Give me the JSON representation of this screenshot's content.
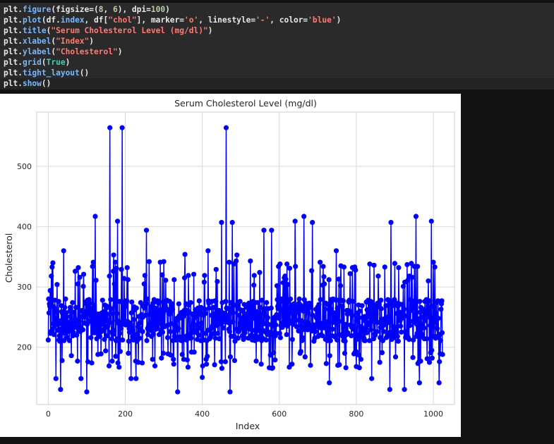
{
  "code": {
    "lines": [
      [
        [
          "plt.",
          "n"
        ],
        [
          "figure",
          "fn"
        ],
        [
          "(figsize=(",
          "n"
        ],
        [
          "8",
          "num"
        ],
        [
          ", ",
          "n"
        ],
        [
          "6",
          "num"
        ],
        [
          "), dpi=",
          "n"
        ],
        [
          "100",
          "num"
        ],
        [
          ")",
          "n"
        ]
      ],
      [
        [
          "plt.",
          "n"
        ],
        [
          "plot",
          "fn"
        ],
        [
          "(df.",
          "n"
        ],
        [
          "index",
          "fn"
        ],
        [
          ", df[",
          "n"
        ],
        [
          "\"chol\"",
          "str"
        ],
        [
          "], marker=",
          "n"
        ],
        [
          "'o'",
          "str"
        ],
        [
          ", linestyle=",
          "n"
        ],
        [
          "'-'",
          "str"
        ],
        [
          ", color=",
          "n"
        ],
        [
          "'blue'",
          "str"
        ],
        [
          ")",
          "n"
        ]
      ],
      [
        [
          "plt.",
          "n"
        ],
        [
          "title",
          "fn"
        ],
        [
          "(",
          "n"
        ],
        [
          "\"Serum Cholesterol Level (mg/dl)\"",
          "str"
        ],
        [
          ")",
          "n"
        ]
      ],
      [
        [
          "plt.",
          "n"
        ],
        [
          "xlabel",
          "fn"
        ],
        [
          "(",
          "n"
        ],
        [
          "\"Index\"",
          "str"
        ],
        [
          ")",
          "n"
        ]
      ],
      [
        [
          "plt.",
          "n"
        ],
        [
          "ylabel",
          "fn"
        ],
        [
          "(",
          "n"
        ],
        [
          "\"Cholesterol\"",
          "str"
        ],
        [
          ")",
          "n"
        ]
      ],
      [
        [
          "plt.",
          "n"
        ],
        [
          "grid",
          "fn"
        ],
        [
          "(",
          "n"
        ],
        [
          "True",
          "kw"
        ],
        [
          ")",
          "n"
        ]
      ],
      [
        [
          "plt.",
          "n"
        ],
        [
          "tight_layout",
          "fn"
        ],
        [
          "()",
          "n"
        ]
      ],
      [
        [
          "plt.",
          "n"
        ],
        [
          "show",
          "fn"
        ],
        [
          "()",
          "n"
        ]
      ]
    ]
  },
  "chart_data": {
    "type": "line",
    "title": "Serum Cholesterol Level (mg/dl)",
    "xlabel": "Index",
    "ylabel": "Cholesterol",
    "xlim": [
      -30,
      1055
    ],
    "ylim": [
      105,
      590
    ],
    "xticks": [
      0,
      200,
      400,
      600,
      800,
      1000
    ],
    "yticks": [
      200,
      300,
      400,
      500
    ],
    "grid": true,
    "color": "#0000ff",
    "marker": "o",
    "linestyle": "-",
    "n_points": 1025,
    "highlights": [
      {
        "x": 0,
        "y": 212
      },
      {
        "x": 5,
        "y": 294
      },
      {
        "x": 8,
        "y": 318
      },
      {
        "x": 12,
        "y": 340
      },
      {
        "x": 20,
        "y": 148
      },
      {
        "x": 32,
        "y": 130
      },
      {
        "x": 40,
        "y": 360
      },
      {
        "x": 60,
        "y": 186
      },
      {
        "x": 70,
        "y": 326
      },
      {
        "x": 85,
        "y": 148
      },
      {
        "x": 100,
        "y": 126
      },
      {
        "x": 115,
        "y": 334
      },
      {
        "x": 122,
        "y": 417
      },
      {
        "x": 160,
        "y": 564
      },
      {
        "x": 170,
        "y": 353
      },
      {
        "x": 180,
        "y": 409
      },
      {
        "x": 192,
        "y": 564
      },
      {
        "x": 215,
        "y": 148
      },
      {
        "x": 228,
        "y": 148
      },
      {
        "x": 255,
        "y": 394
      },
      {
        "x": 262,
        "y": 342
      },
      {
        "x": 300,
        "y": 342
      },
      {
        "x": 336,
        "y": 126
      },
      {
        "x": 355,
        "y": 354
      },
      {
        "x": 400,
        "y": 150
      },
      {
        "x": 415,
        "y": 360
      },
      {
        "x": 450,
        "y": 407
      },
      {
        "x": 462,
        "y": 564
      },
      {
        "x": 472,
        "y": 126
      },
      {
        "x": 478,
        "y": 407
      },
      {
        "x": 490,
        "y": 353
      },
      {
        "x": 560,
        "y": 394
      },
      {
        "x": 580,
        "y": 394
      },
      {
        "x": 620,
        "y": 338
      },
      {
        "x": 641,
        "y": 409
      },
      {
        "x": 664,
        "y": 417
      },
      {
        "x": 686,
        "y": 407
      },
      {
        "x": 730,
        "y": 141
      },
      {
        "x": 748,
        "y": 360
      },
      {
        "x": 760,
        "y": 335
      },
      {
        "x": 800,
        "y": 168
      },
      {
        "x": 840,
        "y": 148
      },
      {
        "x": 887,
        "y": 130
      },
      {
        "x": 890,
        "y": 407
      },
      {
        "x": 925,
        "y": 130
      },
      {
        "x": 955,
        "y": 417
      },
      {
        "x": 964,
        "y": 141
      },
      {
        "x": 995,
        "y": 409
      },
      {
        "x": 1015,
        "y": 141
      },
      {
        "x": 1024,
        "y": 188
      }
    ]
  }
}
